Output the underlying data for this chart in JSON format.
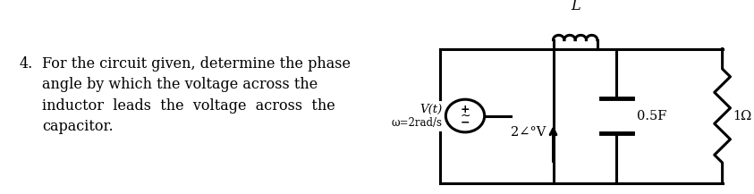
{
  "problem_number": "4.",
  "text_lines": [
    "For the circuit given, determine the phase",
    "angle by which the voltage across the",
    "inductor  leads  the  voltage  across  the",
    "capacitor."
  ],
  "source_label_line1": "V(t)",
  "source_label_line2": "ω=2rad/s",
  "voltage_label": "2∠°V",
  "capacitor_label": "0.5F",
  "resistor_label": "1Ω",
  "inductor_label": "L",
  "bg_color": "#ffffff",
  "line_color": "#000000",
  "font_size_text": 11.5,
  "font_size_labels": 9.5
}
